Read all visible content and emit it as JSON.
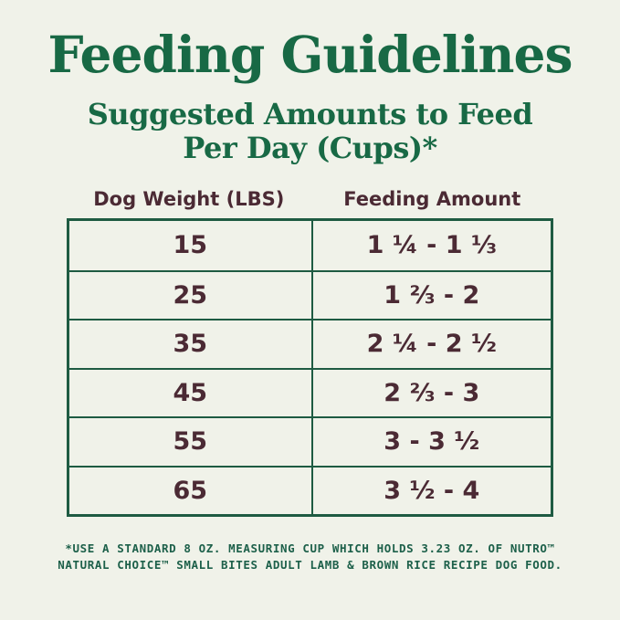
{
  "page": {
    "title": "Feeding Guidelines",
    "subtitle_line1": "Suggested Amounts to Feed",
    "subtitle_line2": "Per Day (Cups)*"
  },
  "table": {
    "columns": [
      "Dog Weight (LBS)",
      "Feeding Amount"
    ],
    "rows": [
      {
        "weight": "15",
        "amount": "1 ¼ - 1 ⅓"
      },
      {
        "weight": "25",
        "amount": "1 ⅔ - 2"
      },
      {
        "weight": "35",
        "amount": "2 ¼ - 2 ½"
      },
      {
        "weight": "45",
        "amount": "2 ⅔ - 3"
      },
      {
        "weight": "55",
        "amount": "3 - 3 ½"
      },
      {
        "weight": "65",
        "amount": "3 ½ - 4"
      }
    ]
  },
  "footnote": {
    "line1": "*USE A STANDARD 8 OZ. MEASURING CUP WHICH HOLDS 3.23 OZ. OF NUTRO™",
    "line2": "NATURAL CHOICE™ SMALL BITES ADULT LAMB & BROWN RICE RECIPE DOG FOOD."
  },
  "colors": {
    "background": "#f0f2e9",
    "heading_green": "#186945",
    "table_border_green": "#1e5b42",
    "table_text_maroon": "#4b2a34",
    "footnote_green": "#1d604a"
  }
}
